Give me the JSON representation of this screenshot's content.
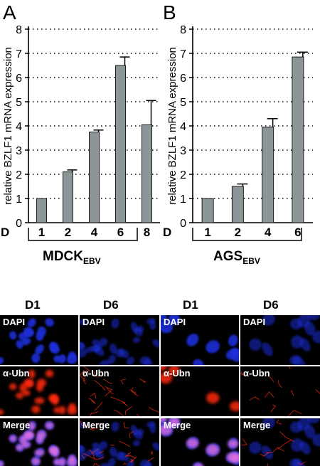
{
  "panels": {
    "a": {
      "letter": "A",
      "cell_line_main": "MDCK",
      "cell_line_sub": "EBV"
    },
    "b": {
      "letter": "B",
      "cell_line_main": "AGS",
      "cell_line_sub": "EBV"
    }
  },
  "chart_data": [
    {
      "type": "bar",
      "panel": "A",
      "title": "",
      "xlabel": "D",
      "ylabel": "relative BZLF1 mRNA expression",
      "categories": [
        "1",
        "2",
        "4",
        "6",
        "8"
      ],
      "values": [
        1.0,
        2.1,
        3.75,
        6.5,
        4.05
      ],
      "errors": [
        0,
        0.08,
        0.08,
        0.35,
        1.0
      ],
      "ylim": [
        0,
        8
      ],
      "yticks": [
        "0",
        "1",
        "2",
        "3",
        "4",
        "5",
        "6",
        "7",
        "8"
      ],
      "grid": "dotted horizontal",
      "group_label": "MDCK EBV"
    },
    {
      "type": "bar",
      "panel": "B",
      "title": "",
      "xlabel": "D",
      "ylabel": "relative BZLF1 mRNA expression",
      "categories": [
        "1",
        "2",
        "4",
        "6"
      ],
      "values": [
        1.0,
        1.5,
        3.95,
        6.85
      ],
      "errors": [
        0,
        0.1,
        0.35,
        0.2
      ],
      "ylim": [
        0,
        8
      ],
      "yticks": [
        "0",
        "1",
        "2",
        "3",
        "4",
        "5",
        "6",
        "7",
        "8"
      ],
      "grid": "dotted horizontal",
      "group_label": "AGS EBV"
    }
  ],
  "micrographs": {
    "column_headers": [
      "D1",
      "D6",
      "D1",
      "D6"
    ],
    "row_labels": [
      "DAPI",
      "α-Ubn",
      "Merge"
    ],
    "colors": {
      "dapi": "#1a2fd6",
      "ubn": "#ff2a10",
      "merge_pink": "#e070e0",
      "background": "#000000"
    }
  }
}
